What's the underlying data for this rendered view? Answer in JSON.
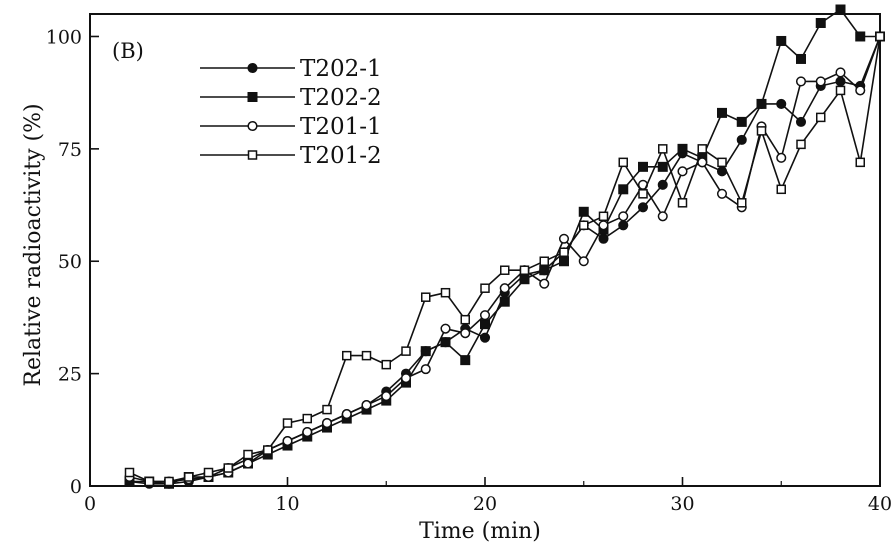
{
  "chart_data": {
    "type": "line",
    "panel_label": "(B)",
    "xlabel": "Time (min)",
    "ylabel": "Relative radioactivity (%)",
    "xlim": [
      0,
      40
    ],
    "ylim": [
      0,
      105
    ],
    "x_ticks": [
      "0",
      "10",
      "20",
      "30",
      "40"
    ],
    "y_ticks": [
      "0",
      "25",
      "50",
      "75",
      "100"
    ],
    "grid": false,
    "legend_position": "top-left",
    "series": [
      {
        "name": "T202-1",
        "marker": "filled-circle",
        "x": [
          2,
          3,
          4,
          5,
          6,
          7,
          8,
          9,
          10,
          11,
          12,
          13,
          14,
          15,
          16,
          17,
          18,
          19,
          20,
          21,
          22,
          23,
          24,
          25,
          26,
          27,
          28,
          29,
          30,
          31,
          32,
          33,
          34,
          35,
          36,
          37,
          38,
          39,
          40
        ],
        "y": [
          1,
          0.5,
          0.5,
          1,
          2,
          4,
          6,
          8,
          10,
          12,
          14,
          16,
          18,
          21,
          25,
          30,
          32,
          35,
          33,
          43,
          47,
          48,
          52,
          58,
          55,
          58,
          62,
          67,
          74,
          72,
          70,
          77,
          85,
          85,
          81,
          89,
          90,
          89,
          100
        ]
      },
      {
        "name": "T202-2",
        "marker": "filled-square",
        "x": [
          2,
          3,
          4,
          5,
          6,
          7,
          8,
          9,
          10,
          11,
          12,
          13,
          14,
          15,
          16,
          17,
          18,
          19,
          20,
          21,
          22,
          23,
          24,
          25,
          26,
          27,
          28,
          29,
          30,
          31,
          32,
          33,
          34,
          35,
          36,
          37,
          38,
          39,
          40
        ],
        "y": [
          1,
          1,
          0.5,
          2,
          2,
          3,
          5,
          7,
          9,
          11,
          13,
          15,
          17,
          19,
          23,
          30,
          32,
          28,
          36,
          41,
          46,
          48,
          50,
          61,
          57,
          66,
          71,
          71,
          75,
          73,
          83,
          81,
          85,
          99,
          95,
          103,
          106,
          100,
          100
        ]
      },
      {
        "name": "T201-1",
        "marker": "open-circle",
        "x": [
          2,
          3,
          4,
          5,
          6,
          7,
          8,
          9,
          10,
          11,
          12,
          13,
          14,
          15,
          16,
          17,
          18,
          19,
          20,
          21,
          22,
          23,
          24,
          25,
          26,
          27,
          28,
          29,
          30,
          31,
          32,
          33,
          34,
          35,
          36,
          37,
          38,
          39,
          40
        ],
        "y": [
          2,
          1,
          1,
          1.5,
          2,
          3,
          5,
          8,
          10,
          12,
          14,
          16,
          18,
          20,
          24,
          26,
          35,
          34,
          38,
          44,
          48,
          45,
          55,
          50,
          58,
          60,
          67,
          60,
          70,
          72,
          65,
          62,
          80,
          73,
          90,
          90,
          92,
          88,
          100
        ]
      },
      {
        "name": "T201-2",
        "marker": "open-square",
        "x": [
          2,
          3,
          4,
          5,
          6,
          7,
          8,
          9,
          10,
          11,
          12,
          13,
          14,
          15,
          16,
          17,
          18,
          19,
          20,
          21,
          22,
          23,
          24,
          25,
          26,
          27,
          28,
          29,
          30,
          31,
          32,
          33,
          34,
          35,
          36,
          37,
          38,
          39,
          40
        ],
        "y": [
          3,
          1,
          1,
          2,
          3,
          4,
          7,
          8,
          14,
          15,
          17,
          29,
          29,
          27,
          30,
          42,
          43,
          37,
          44,
          48,
          48,
          50,
          52,
          58,
          60,
          72,
          65,
          75,
          63,
          75,
          72,
          63,
          79,
          66,
          76,
          82,
          88,
          72,
          100
        ]
      }
    ]
  }
}
